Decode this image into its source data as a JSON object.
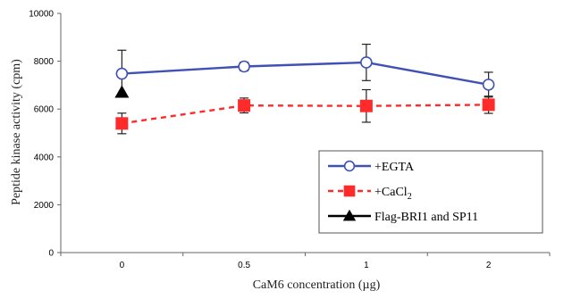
{
  "chart_data": {
    "type": "line",
    "title": "",
    "xlabel": "CaM6 concentration (µg)",
    "ylabel": "Peptide kinase activity (cpm)",
    "categories": [
      "0",
      "0.5",
      "1",
      "2"
    ],
    "ylim": [
      0,
      10000
    ],
    "yticks": [
      0,
      2000,
      4000,
      6000,
      8000,
      10000
    ],
    "ytick_labels": [
      "0",
      "2000",
      "4000",
      "6000",
      "8000",
      "10000"
    ],
    "grid": false,
    "legend_position": "bottom-right",
    "series": [
      {
        "key": "egta",
        "name": "+EGTA",
        "color": "#3f51b5",
        "marker": "open-circle",
        "line": "solid",
        "values": [
          7480,
          7780,
          7950,
          7020
        ],
        "errors": [
          980,
          180,
          760,
          520
        ]
      },
      {
        "key": "cacl2",
        "name": "+CaCl",
        "name_sub": "2",
        "color": "#ff2a2a",
        "marker": "filled-square",
        "line": "dashed",
        "values": [
          5400,
          6150,
          6130,
          6180
        ],
        "errors": [
          430,
          310,
          680,
          360
        ]
      },
      {
        "key": "flag",
        "name": "Flag-BRI1 and SP11",
        "color": "#000000",
        "marker": "filled-triangle",
        "line": "none",
        "values": [
          6700,
          null,
          null,
          null
        ],
        "errors": [
          0,
          null,
          null,
          null
        ]
      }
    ]
  }
}
